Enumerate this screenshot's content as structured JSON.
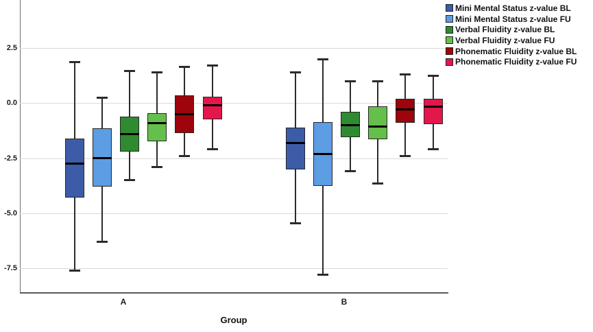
{
  "chart_data": {
    "type": "boxplot",
    "title": "",
    "xlabel": "Group",
    "ylabel": "",
    "categories": [
      "A",
      "B"
    ],
    "yticks": [
      "2.5",
      "0.0",
      "-2.5",
      "-5.0",
      "-7.5"
    ],
    "ytick_values": [
      2.5,
      0.0,
      -2.5,
      -5.0,
      -7.5
    ],
    "ylim": [
      -8.62,
      4.68
    ],
    "grid": true,
    "legend_position": "top-right",
    "series": [
      {
        "name": "Mini Mental Status z-value BL",
        "color": "#3D5CA8",
        "boxes": [
          {
            "group": "A",
            "whisker_low": -7.6,
            "q1": -4.3,
            "median": -2.75,
            "q3": -1.6,
            "whisker_high": 1.85
          },
          {
            "group": "B",
            "whisker_low": -5.45,
            "q1": -3.0,
            "median": -1.8,
            "q3": -1.1,
            "whisker_high": 1.4
          }
        ]
      },
      {
        "name": "Mini Mental Status z-value FU",
        "color": "#5C9DE4",
        "boxes": [
          {
            "group": "A",
            "whisker_low": -6.3,
            "q1": -3.8,
            "median": -2.5,
            "q3": -1.15,
            "whisker_high": 0.25
          },
          {
            "group": "B",
            "whisker_low": -7.8,
            "q1": -3.75,
            "median": -2.3,
            "q3": -0.85,
            "whisker_high": 2.0
          }
        ]
      },
      {
        "name": "Verbal Fluidity z-value BL",
        "color": "#2F8B30",
        "boxes": [
          {
            "group": "A",
            "whisker_low": -3.5,
            "q1": -2.2,
            "median": -1.4,
            "q3": -0.6,
            "whisker_high": 1.45
          },
          {
            "group": "B",
            "whisker_low": -3.1,
            "q1": -1.55,
            "median": -1.0,
            "q3": -0.4,
            "whisker_high": 1.0
          }
        ]
      },
      {
        "name": "Verbal Fluidity z-value FU",
        "color": "#65BF4B",
        "boxes": [
          {
            "group": "A",
            "whisker_low": -2.9,
            "q1": -1.75,
            "median": -0.9,
            "q3": -0.45,
            "whisker_high": 1.4
          },
          {
            "group": "B",
            "whisker_low": -3.65,
            "q1": -1.65,
            "median": -1.05,
            "q3": -0.15,
            "whisker_high": 1.0
          }
        ]
      },
      {
        "name": "Phonematic Fluidity z-value BL",
        "color": "#9D040B",
        "boxes": [
          {
            "group": "A",
            "whisker_low": -2.4,
            "q1": -1.35,
            "median": -0.5,
            "q3": 0.35,
            "whisker_high": 1.65
          },
          {
            "group": "B",
            "whisker_low": -2.4,
            "q1": -0.9,
            "median": -0.3,
            "q3": 0.2,
            "whisker_high": 1.3
          }
        ]
      },
      {
        "name": "Phonematic Fluidity z-value FU",
        "color": "#E3174B",
        "boxes": [
          {
            "group": "A",
            "whisker_low": -2.1,
            "q1": -0.75,
            "median": -0.1,
            "q3": 0.3,
            "whisker_high": 1.7
          },
          {
            "group": "B",
            "whisker_low": -2.1,
            "q1": -0.95,
            "median": -0.15,
            "q3": 0.2,
            "whisker_high": 1.25
          }
        ]
      }
    ]
  }
}
